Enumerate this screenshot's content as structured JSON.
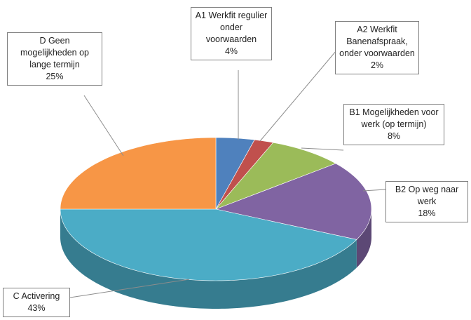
{
  "chart_data": {
    "type": "pie",
    "categories": [
      "A1 Werkfit regulier onder voorwaarden",
      "A2 Werkfit Banenafspraak, onder voorwaarden",
      "B1 Mogelijkheden voor werk (op termijn)",
      "B2 Op weg naar werk",
      "C Activering",
      "D Geen mogelijkheden op lange termijn"
    ],
    "values": [
      4,
      2,
      8,
      18,
      43,
      25
    ],
    "value_labels": [
      "4%",
      "2%",
      "8%",
      "18%",
      "43%",
      "25%"
    ],
    "colors": [
      "#4f81bd",
      "#c0504d",
      "#9bbb59",
      "#8064a2",
      "#4bacc6",
      "#f79646"
    ]
  }
}
